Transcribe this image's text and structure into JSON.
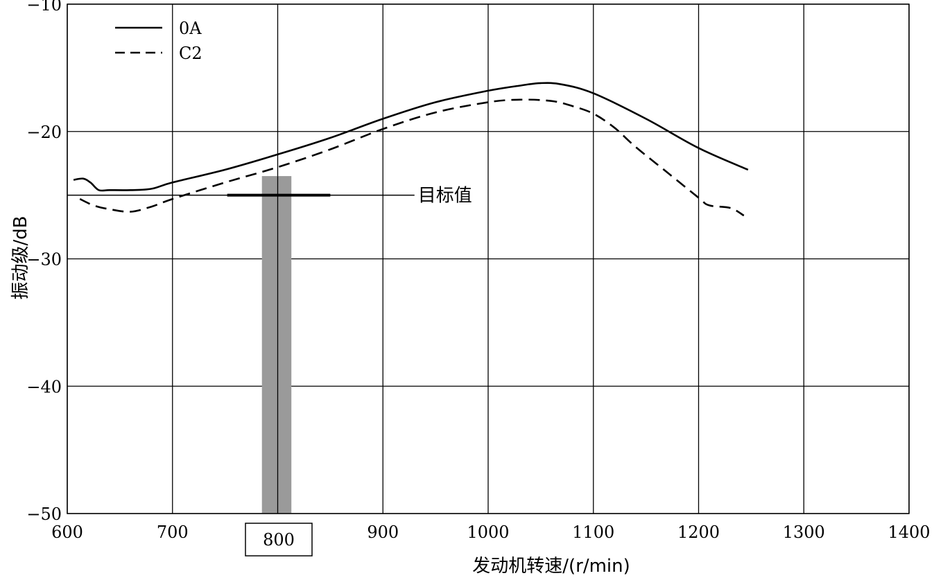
{
  "chart_data": {
    "type": "line",
    "title": "",
    "xlabel": "发动机转速/(r/min)",
    "ylabel": "振动级/dB",
    "xlim": [
      600,
      1400
    ],
    "ylim": [
      -50,
      -10
    ],
    "xticks": [
      600,
      700,
      800,
      900,
      1000,
      1100,
      1200,
      1300,
      1400
    ],
    "yticks": [
      -10,
      -20,
      -30,
      -40,
      -50
    ],
    "xtick_labels": [
      "600",
      "700",
      "800",
      "900",
      "1000",
      "1100",
      "1200",
      "1300",
      "1400"
    ],
    "ytick_labels": [
      "−10",
      "−20",
      "−30",
      "−40",
      "−50"
    ],
    "grid": true,
    "legend_position": "top-left",
    "series": [
      {
        "name": "0A",
        "style": "solid",
        "color": "#000000",
        "x": [
          606,
          615,
          622,
          630,
          640,
          660,
          680,
          700,
          750,
          800,
          850,
          900,
          950,
          1000,
          1030,
          1050,
          1070,
          1100,
          1150,
          1200,
          1247
        ],
        "y": [
          -23.8,
          -23.7,
          -24.0,
          -24.6,
          -24.6,
          -24.6,
          -24.5,
          -24.0,
          -23.0,
          -21.8,
          -20.5,
          -19.0,
          -17.7,
          -16.8,
          -16.4,
          -16.2,
          -16.3,
          -17.0,
          -19.0,
          -21.3,
          -23.0
        ]
      },
      {
        "name": "C2",
        "style": "dashed",
        "color": "#000000",
        "x": [
          612,
          625,
          640,
          660,
          680,
          700,
          750,
          800,
          850,
          900,
          950,
          1000,
          1030,
          1060,
          1080,
          1100,
          1120,
          1140,
          1170,
          1200,
          1210,
          1230,
          1243
        ],
        "y": [
          -25.3,
          -25.8,
          -26.1,
          -26.3,
          -25.9,
          -25.3,
          -24.0,
          -22.8,
          -21.4,
          -19.8,
          -18.5,
          -17.7,
          -17.5,
          -17.6,
          -18.0,
          -18.6,
          -19.7,
          -21.2,
          -23.2,
          -25.2,
          -25.8,
          -26.0,
          -26.6
        ]
      }
    ],
    "target_line": {
      "label": "目标值",
      "y": -25.0,
      "x_end": 930,
      "emphasis_x": [
        752,
        850
      ]
    },
    "highlight_band": {
      "x_start": 785,
      "x_end": 813,
      "y_bottom": -50,
      "y_top": -23.5,
      "color": "#9a9a9a"
    },
    "highlight_label": "800"
  }
}
